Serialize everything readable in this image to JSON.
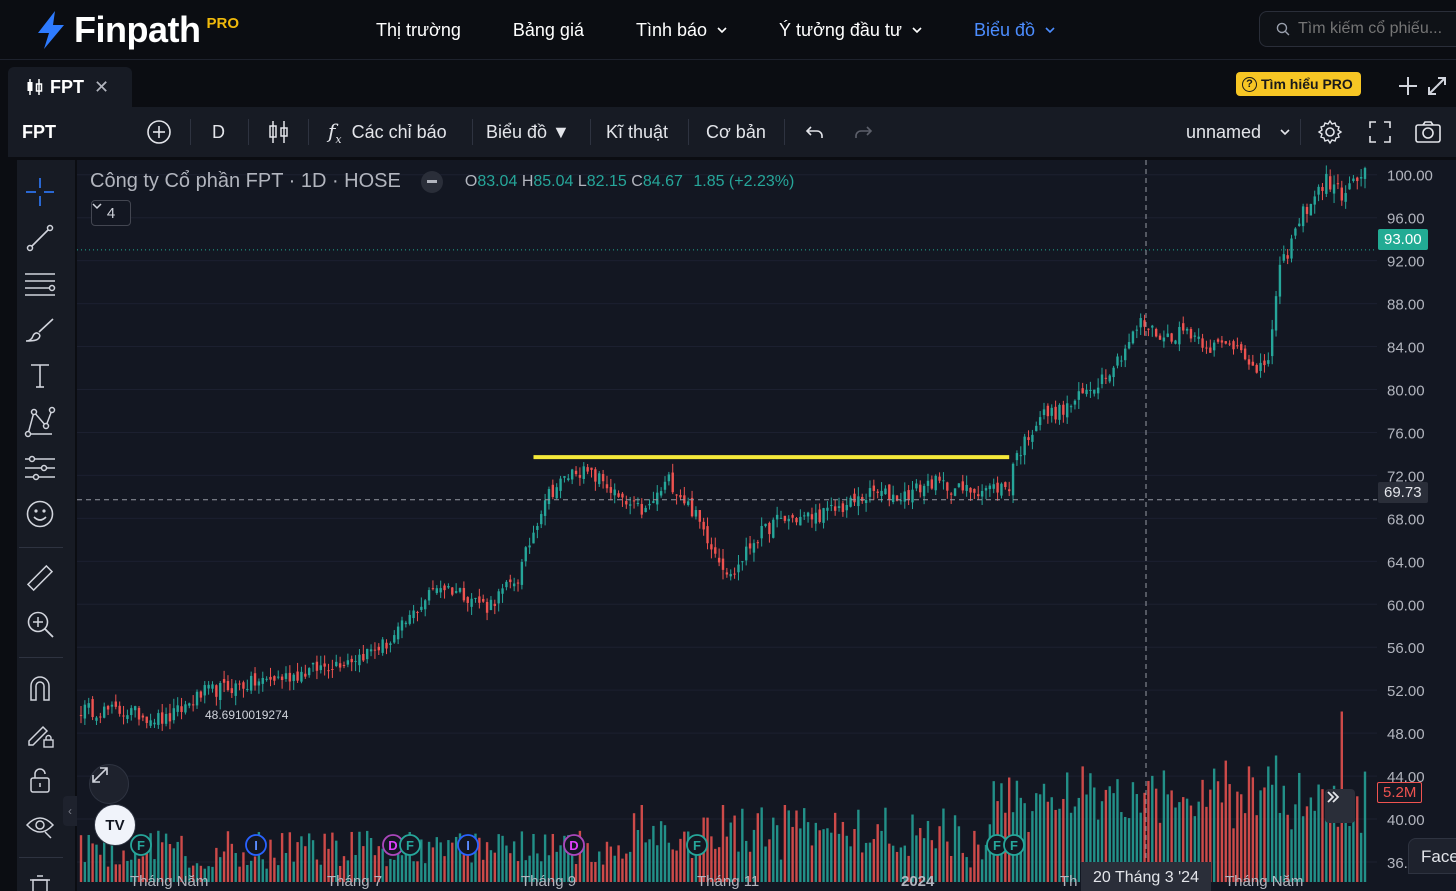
{
  "brand": {
    "name": "Finpath",
    "badge": "PRO"
  },
  "nav": {
    "items": [
      {
        "label": "Thị trường",
        "dropdown": false,
        "active": false
      },
      {
        "label": "Bảng giá",
        "dropdown": false,
        "active": false
      },
      {
        "label": "Tình báo",
        "dropdown": true,
        "active": false
      },
      {
        "label": "Ý tưởng đầu tư",
        "dropdown": true,
        "active": false
      },
      {
        "label": "Biểu đồ",
        "dropdown": true,
        "active": true
      }
    ],
    "search_placeholder": "Tìm kiếm cổ phiếu..."
  },
  "tabbar": {
    "tab_label": "FPT",
    "pro_button": "Tìm hiểu PRO"
  },
  "toolbar": {
    "symbol": "FPT",
    "interval": "D",
    "indicators": "Các chỉ báo",
    "chart_type": "Biểu đồ ▼",
    "technical": "Kĩ thuật",
    "fundamental": "Cơ bản",
    "layout_name": "unnamed"
  },
  "legend": {
    "title": "Công ty Cổ phần FPT · 1D · HOSE",
    "open_label": "O",
    "open": "83.04",
    "high_label": "H",
    "high": "85.04",
    "low_label": "L",
    "low": "82.15",
    "close_label": "C",
    "close": "84.67",
    "change": "1.85 (+2.23%)",
    "collapse_count": "4"
  },
  "price_tags": {
    "last": "93.00",
    "crosshair": "69.73",
    "volume": "5.2M",
    "low_marker": "48.6910019274"
  },
  "crosshair_date": "20 Tháng 3 '24",
  "face_button": "Face",
  "colors": {
    "up": "#26a69a",
    "down": "#ef5350",
    "accent": "#4c8dff",
    "pro": "#f7c624",
    "trendline": "#f5e93a",
    "up_label": "#22ab94"
  },
  "event_markers": [
    "F",
    "I",
    "D",
    "F",
    "I",
    "D",
    "F",
    "F",
    "F"
  ],
  "chart_data": {
    "type": "candlestick",
    "symbol": "FPT",
    "exchange": "HOSE",
    "interval": "1D",
    "ylim": [
      36,
      101
    ],
    "y_ticks": [
      100,
      96,
      92,
      88,
      84,
      80,
      76,
      72,
      68,
      64,
      60,
      56,
      52,
      48,
      44,
      40,
      36
    ],
    "x_ticks": [
      "Tháng Năm",
      "Tháng 7",
      "Tháng 9",
      "Tháng 11",
      "2024",
      "Th",
      "Tháng Năm"
    ],
    "anchors": [
      {
        "i": 0,
        "p": 50.2
      },
      {
        "i": 12,
        "p": 50.0
      },
      {
        "i": 22,
        "p": 49.2
      },
      {
        "i": 32,
        "p": 51.8
      },
      {
        "i": 55,
        "p": 53.4
      },
      {
        "i": 72,
        "p": 55.2
      },
      {
        "i": 80,
        "p": 56.5
      },
      {
        "i": 92,
        "p": 61.8
      },
      {
        "i": 98,
        "p": 61.2
      },
      {
        "i": 105,
        "p": 59.8
      },
      {
        "i": 113,
        "p": 62.5
      },
      {
        "i": 120,
        "p": 70.0
      },
      {
        "i": 128,
        "p": 72.6
      },
      {
        "i": 135,
        "p": 71.5
      },
      {
        "i": 140,
        "p": 69.4
      },
      {
        "i": 146,
        "p": 68.6
      },
      {
        "i": 152,
        "p": 71.6
      },
      {
        "i": 158,
        "p": 68.8
      },
      {
        "i": 164,
        "p": 65.0
      },
      {
        "i": 168,
        "p": 62.5
      },
      {
        "i": 174,
        "p": 66.0
      },
      {
        "i": 180,
        "p": 67.8
      },
      {
        "i": 190,
        "p": 68.2
      },
      {
        "i": 198,
        "p": 69.2
      },
      {
        "i": 205,
        "p": 70.4
      },
      {
        "i": 212,
        "p": 70.0
      },
      {
        "i": 220,
        "p": 71.4
      },
      {
        "i": 228,
        "p": 70.6
      },
      {
        "i": 235,
        "p": 70.8
      },
      {
        "i": 240,
        "p": 71.0
      },
      {
        "i": 241,
        "p": 73.2
      },
      {
        "i": 248,
        "p": 77.6
      },
      {
        "i": 254,
        "p": 78.0
      },
      {
        "i": 262,
        "p": 80.4
      },
      {
        "i": 268,
        "p": 82.8
      },
      {
        "i": 274,
        "p": 86.2
      },
      {
        "i": 280,
        "p": 84.8
      },
      {
        "i": 286,
        "p": 85.6
      },
      {
        "i": 292,
        "p": 84.0
      },
      {
        "i": 300,
        "p": 84.2
      },
      {
        "i": 304,
        "p": 81.2
      },
      {
        "i": 307,
        "p": 83.0
      },
      {
        "i": 310,
        "p": 91.0
      },
      {
        "i": 316,
        "p": 96.5
      },
      {
        "i": 322,
        "p": 99.5
      },
      {
        "i": 326,
        "p": 98.2
      },
      {
        "i": 332,
        "p": 100.2
      }
    ],
    "total_bars": 333,
    "trendline": {
      "from_index": 117,
      "to_index": 240,
      "value": 73.7
    },
    "crosshair": {
      "price": 69.73,
      "date": "20 Tháng 3 '24"
    },
    "last_price": 93.0
  }
}
